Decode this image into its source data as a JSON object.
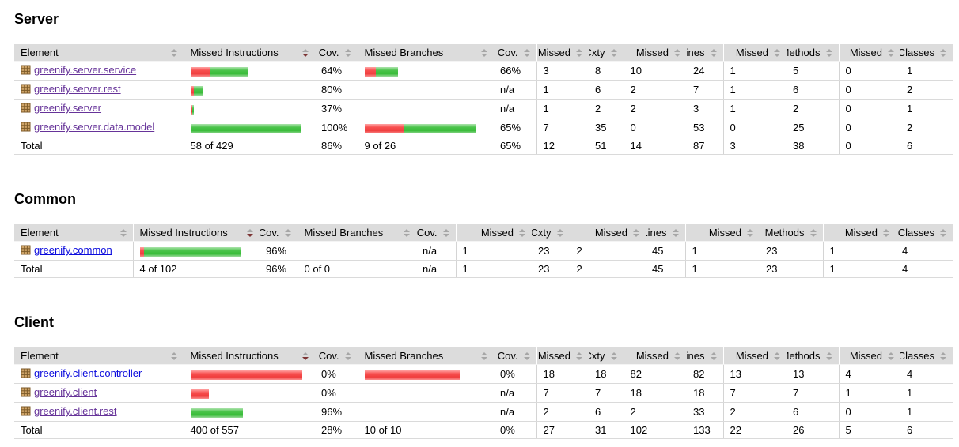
{
  "report": {
    "headers": [
      "Element",
      "Missed Instructions",
      "Cov.",
      "Missed Branches",
      "Cov.",
      "Missed",
      "Cxty",
      "Missed",
      "Lines",
      "Missed",
      "Methods",
      "Missed",
      "Classes"
    ],
    "sort": {
      "column": "Missed Instructions",
      "column_index": 1,
      "direction": "desc"
    },
    "colors": {
      "bar_red": "#f04040",
      "bar_green": "#3cbf3c",
      "header_bg": "#dcdcdc",
      "link": "#0b0bdd",
      "link_visited": "#663399",
      "package_icon": "#c9a064"
    },
    "icons": {
      "package": "package-icon",
      "sort": "sort-arrows-icon"
    },
    "sections": [
      {
        "title": "Server",
        "rows": [
          {
            "name": "greenify.server.service",
            "visited": true,
            "instr_bar": {
              "red": 25,
              "green": 47
            },
            "instr_cov": "64%",
            "branch_bar": {
              "red": 14,
              "green": 28
            },
            "branch_cov": "66%",
            "metrics": [
              "3",
              "8",
              "10",
              "24",
              "1",
              "5",
              "0",
              "1"
            ]
          },
          {
            "name": "greenify.server.rest",
            "visited": true,
            "instr_bar": {
              "red": 4,
              "green": 12
            },
            "instr_cov": "80%",
            "branch_bar": null,
            "branch_cov": "n/a",
            "metrics": [
              "1",
              "6",
              "2",
              "7",
              "1",
              "6",
              "0",
              "2"
            ]
          },
          {
            "name": "greenify.server",
            "visited": true,
            "instr_bar": {
              "red": 2,
              "green": 2
            },
            "instr_cov": "37%",
            "branch_bar": null,
            "branch_cov": "n/a",
            "metrics": [
              "1",
              "2",
              "2",
              "3",
              "1",
              "2",
              "0",
              "1"
            ]
          },
          {
            "name": "greenify.server.data.model",
            "visited": true,
            "instr_bar": {
              "red": 0,
              "green": 140
            },
            "instr_cov": "100%",
            "branch_bar": {
              "red": 49,
              "green": 91
            },
            "branch_cov": "65%",
            "metrics": [
              "7",
              "35",
              "0",
              "53",
              "0",
              "25",
              "0",
              "2"
            ]
          }
        ],
        "total": {
          "label": "Total",
          "instr_text": "58 of 429",
          "instr_cov": "86%",
          "branch_text": "9 of 26",
          "branch_cov": "65%",
          "metrics": [
            "12",
            "51",
            "14",
            "87",
            "3",
            "38",
            "0",
            "6"
          ]
        }
      },
      {
        "title": "Common",
        "rows": [
          {
            "name": "greenify.common",
            "visited": false,
            "instr_bar": {
              "red": 5,
              "green": 123
            },
            "instr_cov": "96%",
            "branch_bar": null,
            "branch_cov": "n/a",
            "metrics": [
              "1",
              "23",
              "2",
              "45",
              "1",
              "23",
              "1",
              "4"
            ]
          }
        ],
        "total": {
          "label": "Total",
          "instr_text": "4 of 102",
          "instr_cov": "96%",
          "branch_text": "0 of 0",
          "branch_cov": "n/a",
          "metrics": [
            "1",
            "23",
            "2",
            "45",
            "1",
            "23",
            "1",
            "4"
          ]
        }
      },
      {
        "title": "Client",
        "rows": [
          {
            "name": "greenify.client.controller",
            "visited": false,
            "instr_bar": {
              "red": 141,
              "green": 0
            },
            "instr_cov": "0%",
            "branch_bar": {
              "red": 120,
              "green": 0
            },
            "branch_cov": "0%",
            "metrics": [
              "18",
              "18",
              "82",
              "82",
              "13",
              "13",
              "4",
              "4"
            ]
          },
          {
            "name": "greenify.client",
            "visited": true,
            "instr_bar": {
              "red": 23,
              "green": 0
            },
            "instr_cov": "0%",
            "branch_bar": null,
            "branch_cov": "n/a",
            "metrics": [
              "7",
              "7",
              "18",
              "18",
              "7",
              "7",
              "1",
              "1"
            ]
          },
          {
            "name": "greenify.client.rest",
            "visited": true,
            "instr_bar": {
              "red": 0,
              "green": 66
            },
            "instr_cov": "96%",
            "branch_bar": null,
            "branch_cov": "n/a",
            "metrics": [
              "2",
              "6",
              "2",
              "33",
              "2",
              "6",
              "0",
              "1"
            ]
          }
        ],
        "total": {
          "label": "Total",
          "instr_text": "400 of 557",
          "instr_cov": "28%",
          "branch_text": "10 of 10",
          "branch_cov": "0%",
          "metrics": [
            "27",
            "31",
            "102",
            "133",
            "22",
            "26",
            "5",
            "6"
          ]
        }
      }
    ]
  }
}
